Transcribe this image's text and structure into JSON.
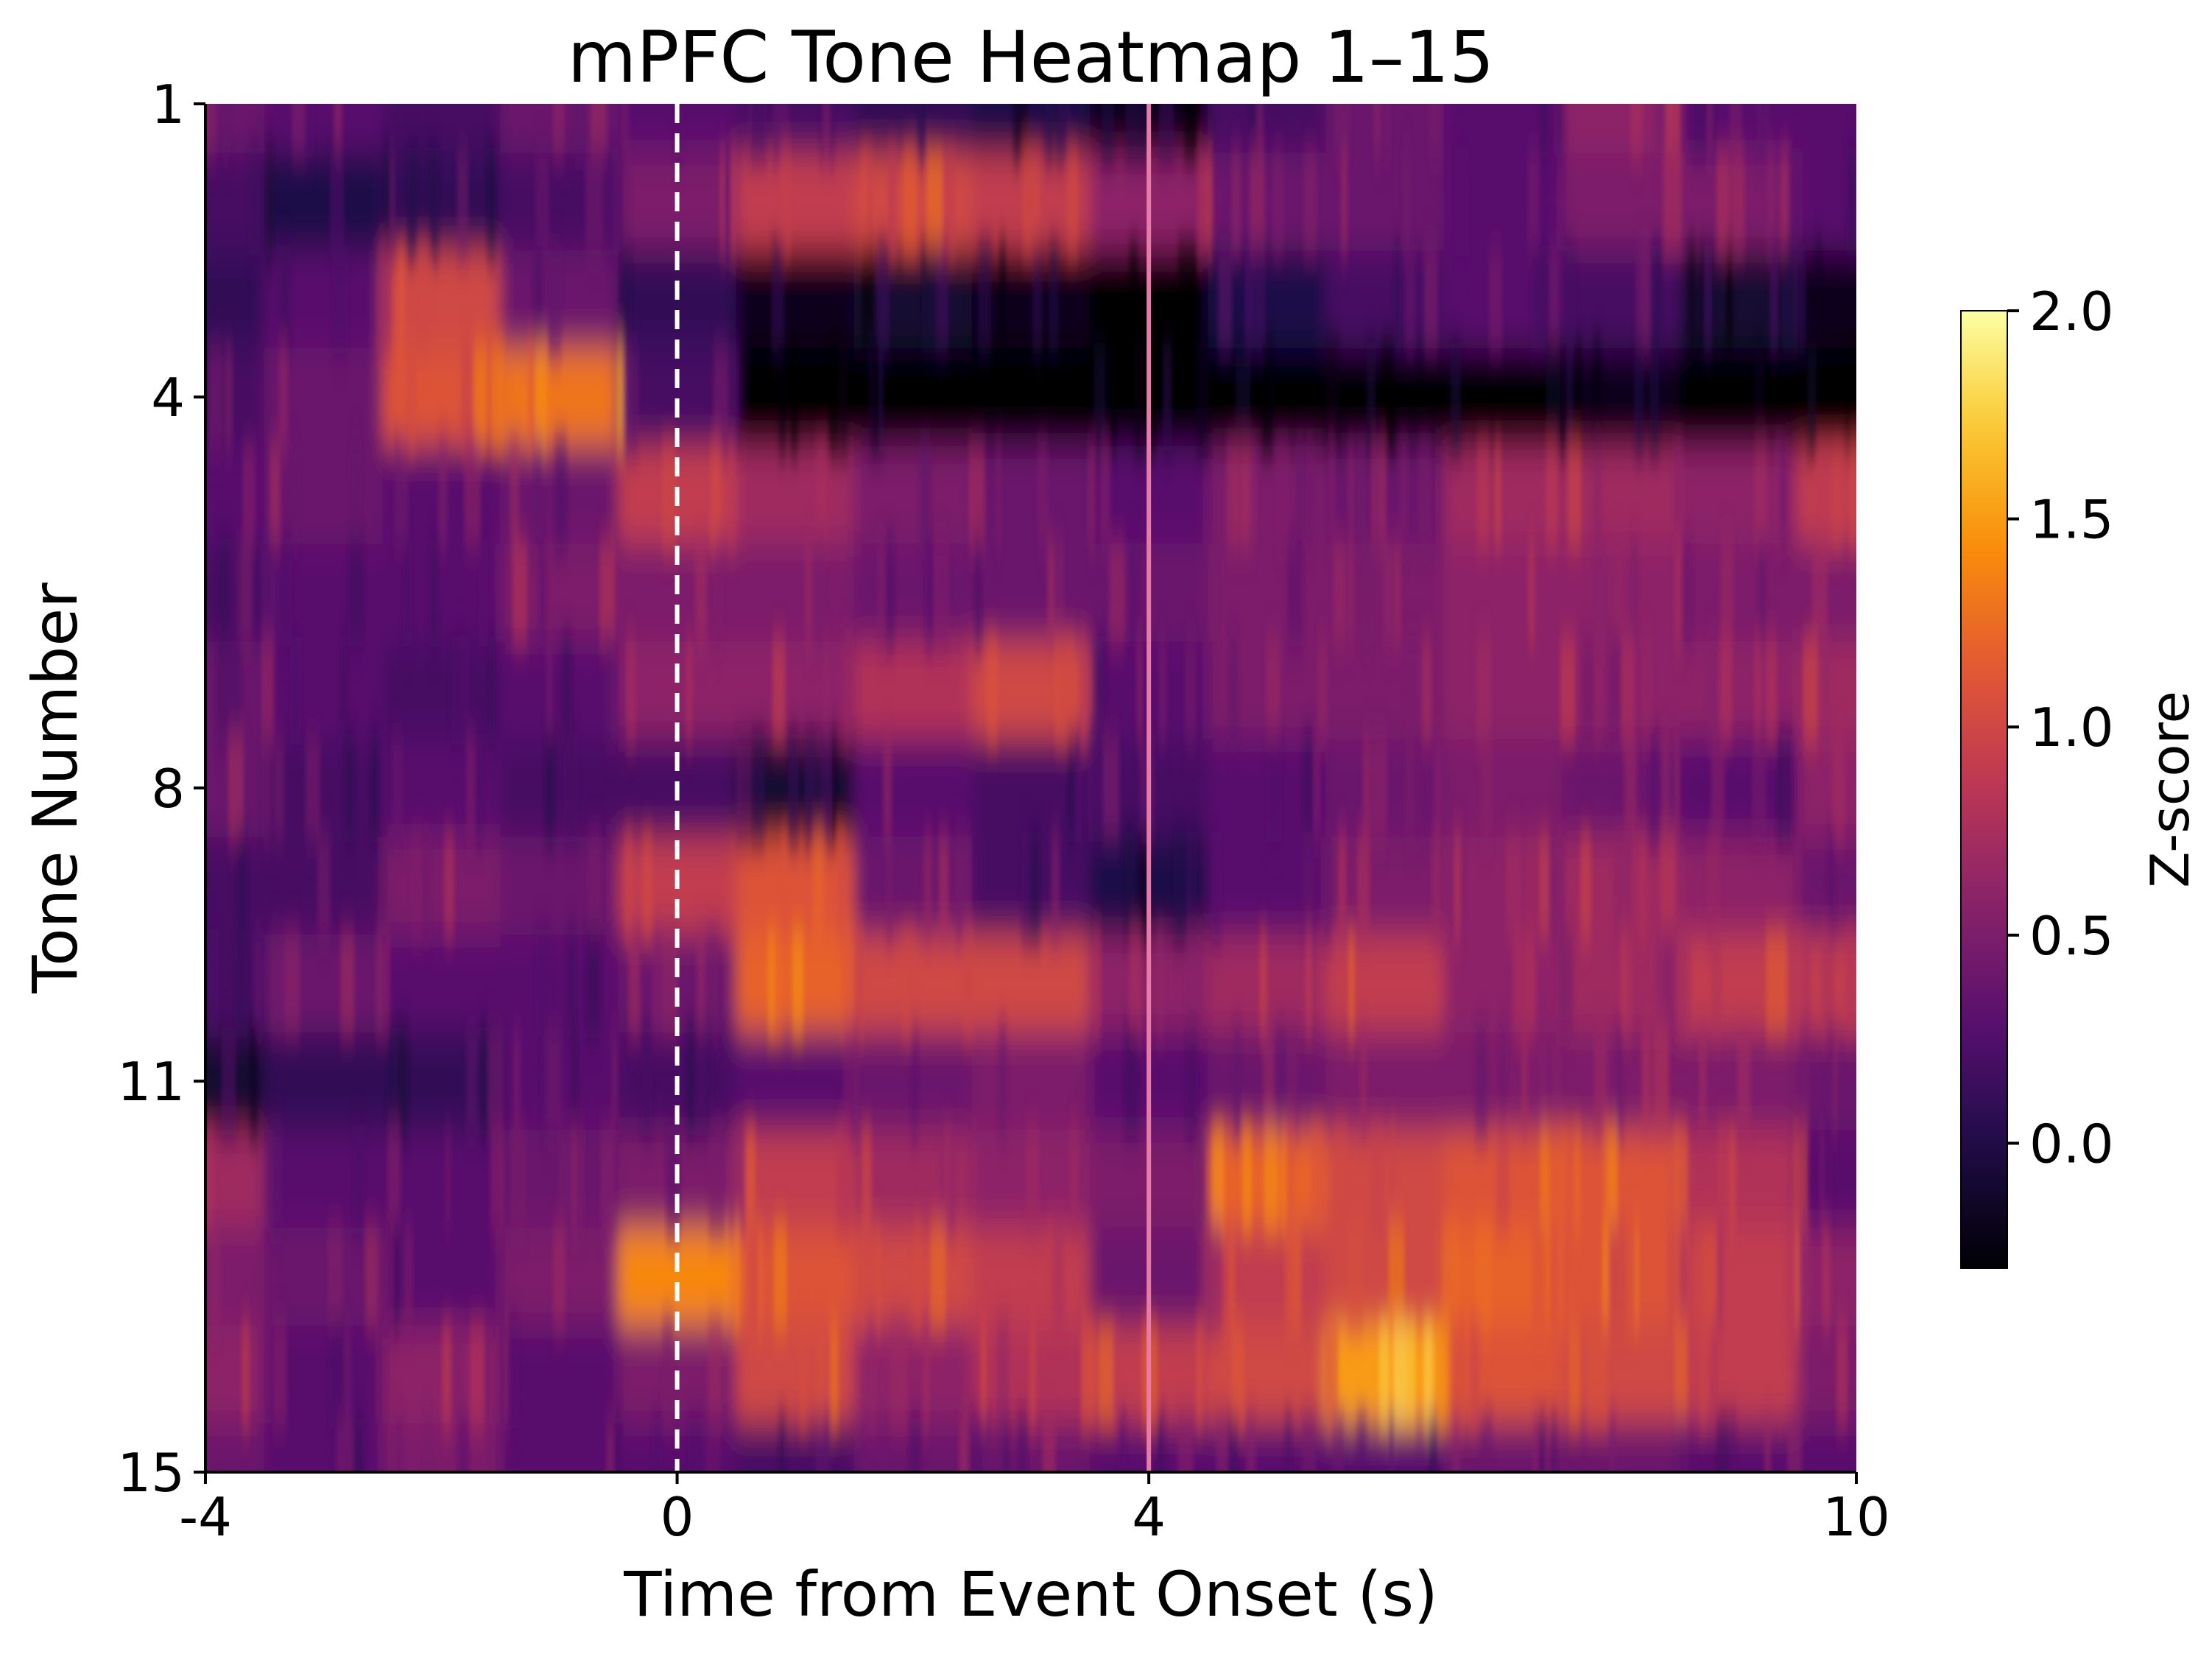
{
  "chart_data": {
    "type": "heatmap",
    "title": "mPFC Tone Heatmap 1–15",
    "xlabel": "Time from Event Onset (s)",
    "ylabel": "Tone Number",
    "colorbar_label": "Z-score",
    "colormap": "inferno",
    "xlim": [
      -4,
      10
    ],
    "ylim": [
      1,
      15
    ],
    "x_ticks": [
      -4,
      0,
      4,
      10
    ],
    "x_tick_labels": [
      "-4",
      "0",
      "4",
      "10"
    ],
    "y_ticks": [
      1,
      4,
      8,
      11,
      15
    ],
    "y_tick_labels": [
      "1",
      "4",
      "8",
      "11",
      "15"
    ],
    "color_range": [
      -0.3,
      2.0
    ],
    "colorbar_ticks": [
      0.0,
      0.5,
      1.0,
      1.5,
      2.0
    ],
    "colorbar_tick_labels": [
      "0.0",
      "0.5",
      "1.0",
      "1.5",
      "2.0"
    ],
    "rows": [
      1,
      2,
      3,
      4,
      5,
      6,
      7,
      8,
      9,
      10,
      11,
      12,
      13,
      14,
      15
    ],
    "time_bins": [
      -4,
      -3,
      -2,
      -1,
      0,
      1,
      2,
      3,
      4,
      5,
      6,
      7,
      8,
      9,
      10
    ],
    "z_values": [
      [
        0.4,
        0.3,
        0.2,
        0.4,
        0.3,
        0.2,
        0.1,
        0.0,
        -0.2,
        0.2,
        0.4,
        0.3,
        0.6,
        0.3,
        0.3
      ],
      [
        0.2,
        0.0,
        0.1,
        0.2,
        0.5,
        0.9,
        1.0,
        0.9,
        0.6,
        0.4,
        0.4,
        0.3,
        0.5,
        0.5,
        0.3
      ],
      [
        0.1,
        0.3,
        1.0,
        0.4,
        0.1,
        -0.2,
        -0.1,
        -0.2,
        -0.3,
        0.0,
        0.2,
        0.3,
        0.2,
        -0.1,
        -0.2
      ],
      [
        0.2,
        0.4,
        1.1,
        1.3,
        0.2,
        -0.3,
        -0.3,
        -0.3,
        -0.3,
        -0.3,
        -0.3,
        -0.3,
        -0.2,
        -0.3,
        -0.3
      ],
      [
        0.3,
        0.4,
        0.3,
        0.4,
        0.9,
        0.7,
        0.5,
        0.4,
        0.3,
        0.5,
        0.4,
        0.7,
        0.7,
        0.6,
        0.9
      ],
      [
        0.2,
        0.3,
        0.3,
        0.5,
        0.5,
        0.5,
        0.4,
        0.4,
        0.4,
        0.5,
        0.5,
        0.6,
        0.6,
        0.5,
        0.5
      ],
      [
        0.4,
        0.3,
        0.2,
        0.3,
        0.6,
        0.6,
        0.8,
        1.0,
        0.3,
        0.5,
        0.5,
        0.6,
        0.6,
        0.6,
        0.7
      ],
      [
        0.4,
        0.2,
        0.3,
        0.2,
        0.2,
        -0.1,
        0.3,
        0.2,
        0.2,
        0.3,
        0.4,
        0.5,
        0.4,
        0.3,
        0.6
      ],
      [
        0.2,
        0.2,
        0.5,
        0.4,
        0.9,
        1.1,
        0.4,
        0.2,
        0.0,
        0.3,
        0.5,
        0.6,
        0.7,
        0.6,
        0.4
      ],
      [
        0.2,
        0.4,
        0.3,
        0.3,
        0.4,
        1.2,
        1.0,
        1.0,
        0.6,
        0.7,
        0.9,
        0.6,
        0.7,
        0.9,
        0.9
      ],
      [
        -0.1,
        0.1,
        0.1,
        0.3,
        0.2,
        0.3,
        0.4,
        0.5,
        0.3,
        0.4,
        0.5,
        0.5,
        0.5,
        0.5,
        0.4
      ],
      [
        0.7,
        0.3,
        0.3,
        0.4,
        0.5,
        0.9,
        0.7,
        0.6,
        0.5,
        1.2,
        1.0,
        1.1,
        1.1,
        0.8,
        0.3
      ],
      [
        0.5,
        0.4,
        0.3,
        0.5,
        1.4,
        1.1,
        1.0,
        0.9,
        0.4,
        0.9,
        1.0,
        1.2,
        1.1,
        0.9,
        0.6
      ],
      [
        0.6,
        0.3,
        0.6,
        0.3,
        0.5,
        1.0,
        0.6,
        0.8,
        0.9,
        1.0,
        1.5,
        1.1,
        1.0,
        0.9,
        0.5
      ],
      [
        0.4,
        0.3,
        0.5,
        0.3,
        0.3,
        0.2,
        0.4,
        0.4,
        0.3,
        0.3,
        0.3,
        0.4,
        0.4,
        0.3,
        0.3
      ]
    ],
    "vertical_lines": [
      {
        "x": 0,
        "style": "dashed",
        "color": "#ffffff"
      },
      {
        "x": 4,
        "style": "solid",
        "color": "#e87aa6"
      }
    ]
  }
}
